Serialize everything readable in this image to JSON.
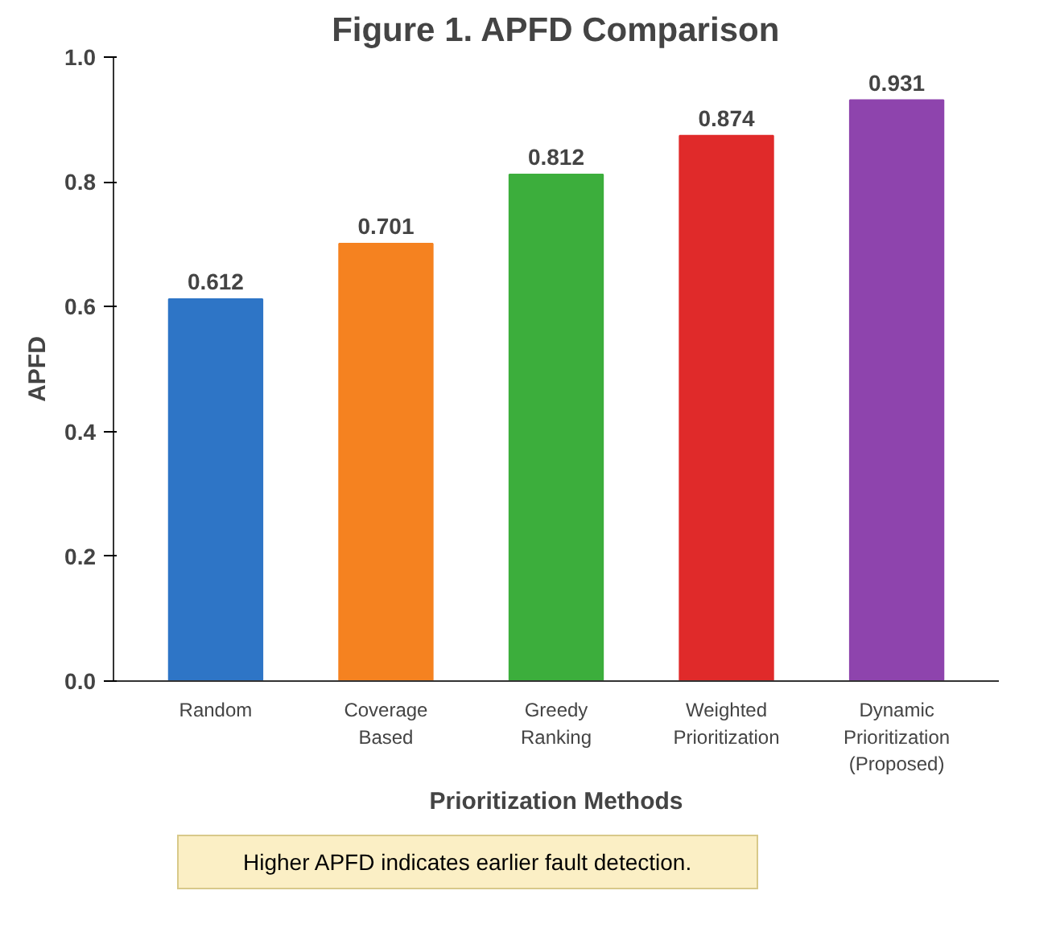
{
  "chart_data": {
    "type": "bar",
    "title": "Figure 1. APFD Comparison",
    "xlabel": "Prioritization Methods",
    "ylabel": "APFD",
    "categories": [
      "Random",
      "Coverage\nBased",
      "Greedy\nRanking",
      "Weighted\nPrioritization",
      "Dynamic\nPrioritization\n(Proposed)"
    ],
    "values": [
      0.612,
      0.701,
      0.812,
      0.874,
      0.931
    ],
    "colors": [
      "#2e75c6",
      "#f58220",
      "#3cae3c",
      "#e02a2a",
      "#8e44ad"
    ],
    "ylim": [
      0,
      1.0
    ],
    "yticks": [
      {
        "value": 0,
        "label": "0.0"
      },
      {
        "value": 0.2,
        "label": "0.2"
      },
      {
        "value": 0.4,
        "label": "0.4"
      },
      {
        "value": 0.6,
        "label": "0.6"
      },
      {
        "value": 0.8,
        "label": "0.8"
      },
      {
        "value": 1.0,
        "label": "1.0"
      }
    ],
    "data_labels": true,
    "grid": false,
    "annotations": [
      "Higher APFD indicates earlier fault detection."
    ]
  }
}
